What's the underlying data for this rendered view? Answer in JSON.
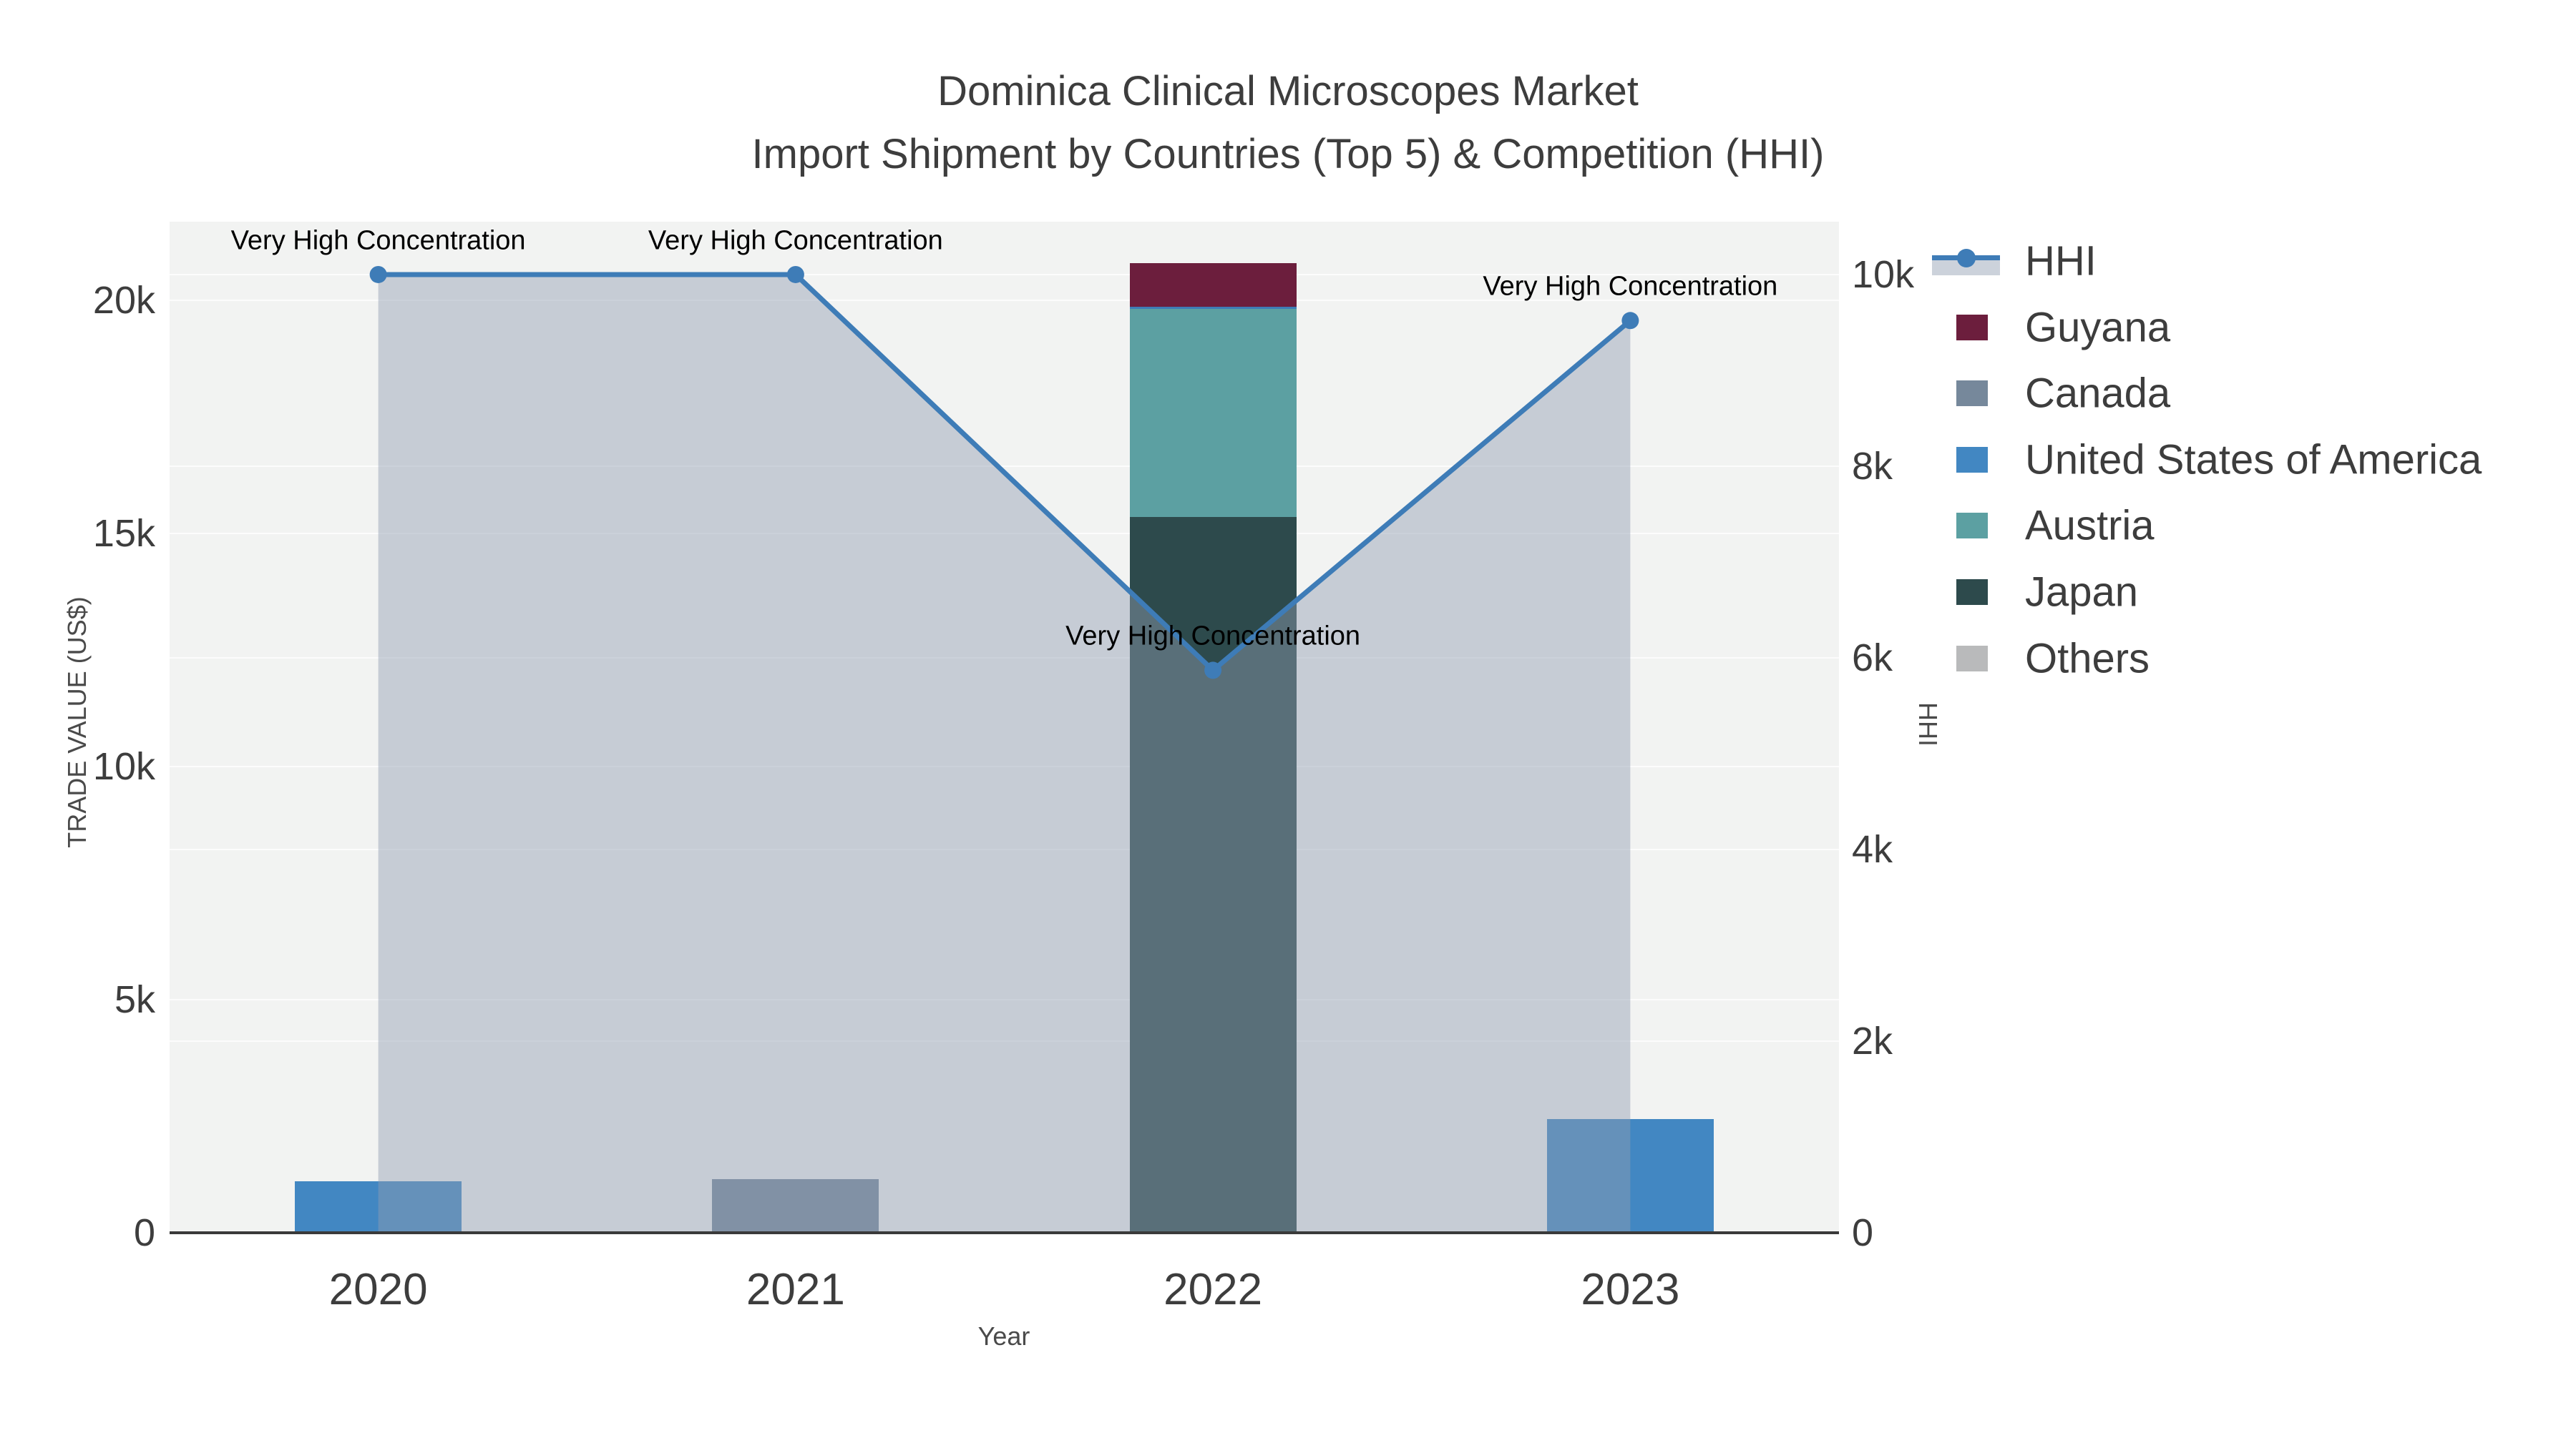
{
  "title": {
    "line1": "Dominica Clinical Microscopes Market",
    "line2": "Import Shipment by Countries (Top 5) & Competition (HHI)"
  },
  "axes": {
    "x": {
      "title": "Year",
      "ticks": [
        "2020",
        "2021",
        "2022",
        "2023"
      ]
    },
    "y_left": {
      "title": "TRADE VALUE (US$)",
      "ticks": [
        {
          "v": 0,
          "label": "0"
        },
        {
          "v": 5000,
          "label": "5k"
        },
        {
          "v": 10000,
          "label": "10k"
        },
        {
          "v": 15000,
          "label": "15k"
        },
        {
          "v": 20000,
          "label": "20k"
        }
      ],
      "max": 21687
    },
    "y_right": {
      "title": "HHI",
      "ticks": [
        {
          "v": 0,
          "label": "0"
        },
        {
          "v": 2000,
          "label": "2k"
        },
        {
          "v": 4000,
          "label": "4k"
        },
        {
          "v": 6000,
          "label": "6k"
        },
        {
          "v": 8000,
          "label": "8k"
        },
        {
          "v": 10000,
          "label": "10k"
        }
      ],
      "max": 10552
    }
  },
  "legend": {
    "items": [
      {
        "label": "HHI",
        "swatch": "line",
        "color": "#3e7cb7"
      },
      {
        "label": "Guyana",
        "swatch": "square",
        "color": "#6c1e3d"
      },
      {
        "label": "Canada",
        "swatch": "square",
        "color": "#76889b"
      },
      {
        "label": "United States of America",
        "swatch": "square",
        "color": "#4287c2"
      },
      {
        "label": "Austria",
        "swatch": "square",
        "color": "#5ca0a2"
      },
      {
        "label": "Japan",
        "swatch": "square",
        "color": "#2d4a4c"
      },
      {
        "label": "Others",
        "swatch": "square",
        "color": "#b9babb"
      }
    ]
  },
  "chart_data": {
    "type": "bar+line",
    "categories": [
      "2020",
      "2021",
      "2022",
      "2023"
    ],
    "bar_axis": "left",
    "stacked": true,
    "stack_order": [
      "Japan",
      "Austria",
      "Guyana",
      "United States of America",
      "Canada",
      "Others"
    ],
    "series": [
      {
        "name": "Guyana",
        "color": "#6c1e3d",
        "values": [
          0,
          0,
          950,
          0
        ]
      },
      {
        "name": "Canada",
        "color": "#76889b",
        "values": [
          0,
          1150,
          0,
          0
        ]
      },
      {
        "name": "United States of America",
        "color": "#4287c2",
        "values": [
          1100,
          0,
          0,
          2440
        ]
      },
      {
        "name": "Austria",
        "color": "#5ca0a2",
        "values": [
          0,
          0,
          4500,
          0
        ]
      },
      {
        "name": "Japan",
        "color": "#2d4a4c",
        "values": [
          0,
          0,
          15350,
          0
        ]
      },
      {
        "name": "Others",
        "color": "#b9babb",
        "values": [
          0,
          0,
          0,
          0
        ]
      }
    ],
    "line_series": {
      "name": "HHI",
      "axis": "right",
      "color": "#3e7cb7",
      "fill_color": "rgba(144,157,177,0.45)",
      "marker_radius": 12,
      "line_width": 7,
      "values": [
        10000,
        10000,
        5870,
        9520
      ]
    },
    "annotations": [
      {
        "text": "Very High Concentration",
        "point_index": 0
      },
      {
        "text": "Very High Concentration",
        "point_index": 1
      },
      {
        "text": "Very High Concentration",
        "point_index": 2
      },
      {
        "text": "Very High Concentration",
        "point_index": 3
      }
    ],
    "artifact_line": {
      "category_index": 2,
      "stack_value": 19850,
      "color": "#3e7cb7"
    },
    "title": "Dominica Clinical Microscopes Market — Import Shipment by Countries (Top 5) & Competition (HHI)",
    "xlabel": "Year",
    "ylabel_left": "TRADE VALUE (US$)",
    "ylabel_right": "HHI",
    "ylim_left": [
      0,
      21687
    ],
    "ylim_right": [
      0,
      10552
    ],
    "grid": true,
    "legend_position": "right",
    "plot_bg": "#f2f3f2",
    "grid_color": "#ffffff"
  }
}
